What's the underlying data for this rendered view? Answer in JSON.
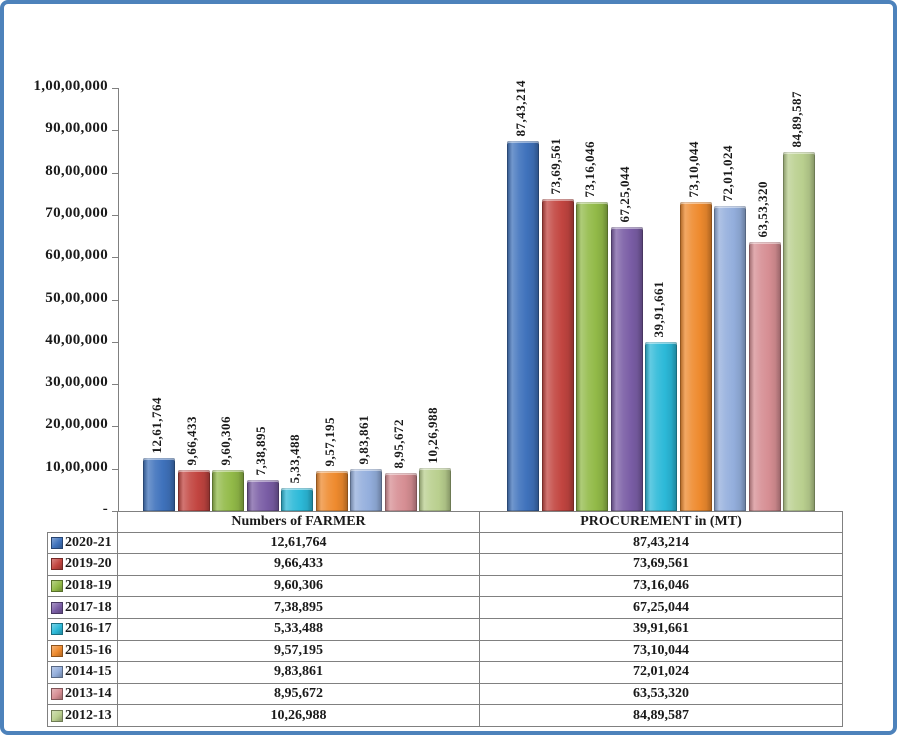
{
  "frame": {
    "border_color": "#4d82bb",
    "background": "#ffffff"
  },
  "chart_data": {
    "type": "bar",
    "title": "",
    "categories": [
      "Numbers of FARMER",
      "PROCUREMENT in (MT)"
    ],
    "y_axis": {
      "min": 0,
      "max": 10000000,
      "tick_interval": 1000000,
      "tick_labels": [
        "1,00,00,000",
        "90,00,000",
        "80,00,000",
        "70,00,000",
        "60,00,000",
        "50,00,000",
        "40,00,000",
        "30,00,000",
        "20,00,000",
        "10,00,000",
        "-"
      ]
    },
    "grid": false,
    "legend_position": "table-rows-left",
    "series": [
      {
        "name": "2020-21",
        "color": "#3F72BC",
        "values": [
          1261764,
          8743214
        ],
        "display": [
          "12,61,764",
          "87,43,214"
        ]
      },
      {
        "name": "2019-20",
        "color": "#C24540",
        "values": [
          966433,
          7369561
        ],
        "display": [
          "9,66,433",
          "73,69,561"
        ]
      },
      {
        "name": "2018-19",
        "color": "#92BA48",
        "values": [
          960306,
          7316046
        ],
        "display": [
          "9,60,306",
          "73,16,046"
        ]
      },
      {
        "name": "2017-18",
        "color": "#7A5DA5",
        "values": [
          738895,
          6725044
        ],
        "display": [
          "7,38,895",
          "67,25,044"
        ]
      },
      {
        "name": "2016-17",
        "color": "#2CB9D8",
        "values": [
          533488,
          3991661
        ],
        "display": [
          "5,33,488",
          "39,91,661"
        ]
      },
      {
        "name": "2015-16",
        "color": "#EE8A2E",
        "values": [
          957195,
          7310044
        ],
        "display": [
          "9,57,195",
          "73,10,044"
        ]
      },
      {
        "name": "2014-15",
        "color": "#93AEDC",
        "values": [
          983861,
          7201024
        ],
        "display": [
          "9,83,861",
          "72,01,024"
        ]
      },
      {
        "name": "2013-14",
        "color": "#D68E93",
        "values": [
          895672,
          6353320
        ],
        "display": [
          "8,95,672",
          "63,53,320"
        ]
      },
      {
        "name": "2012-13",
        "color": "#B9CF8E",
        "values": [
          1026988,
          8489587
        ],
        "display": [
          "10,26,988",
          "84,89,587"
        ]
      }
    ]
  }
}
